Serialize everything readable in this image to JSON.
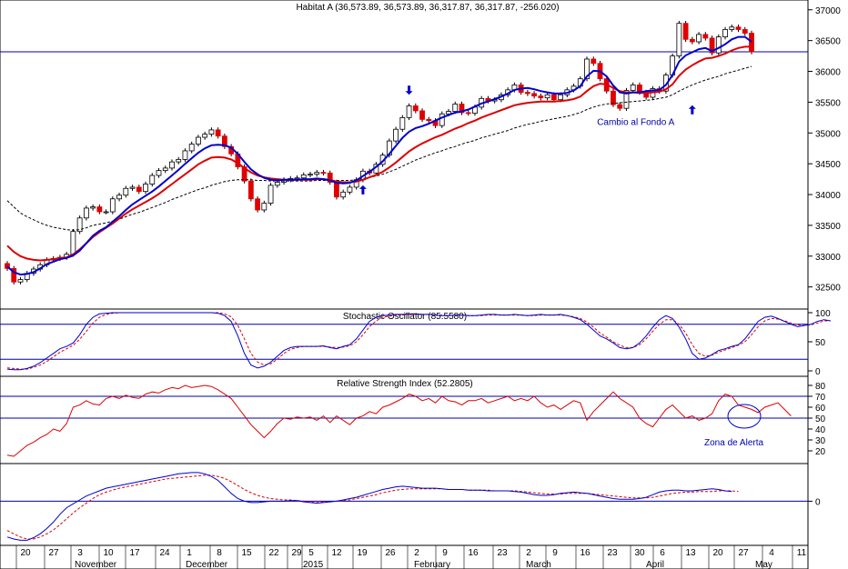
{
  "colors": {
    "bull": "#ffffff",
    "bear": "#e00000",
    "ma_fast": "#0000cc",
    "ma_slow": "#dd0000",
    "ma_long": "#000000",
    "hline": "#0000aa",
    "osc_k": "#0000cc",
    "osc_d": "#dd0000",
    "rsi": "#dd0000",
    "circle": "#0000cc"
  },
  "chart_data": [
    {
      "type": "candlestick",
      "title": "Habitat A (36,573.89, 36,573.89, 36,317.87, 36,317.87, -256.020)",
      "ylim": [
        32200,
        37100
      ],
      "yticks": [
        32500,
        33000,
        33500,
        34000,
        34500,
        35000,
        35500,
        36000,
        36500,
        37000
      ],
      "yticklabels": [
        "32500",
        "33000",
        "33500",
        "34000",
        "34500",
        "35000",
        "35500",
        "36000",
        "36500",
        "37000"
      ],
      "reference_line": 36317.87,
      "close": [
        32800,
        32580,
        32620,
        32720,
        32790,
        32860,
        32940,
        32960,
        32980,
        33030,
        33400,
        33620,
        33780,
        33800,
        33720,
        33720,
        33930,
        33990,
        34100,
        34120,
        34050,
        34170,
        34310,
        34390,
        34430,
        34530,
        34570,
        34710,
        34820,
        34930,
        34980,
        35050,
        34950,
        34780,
        34660,
        34450,
        34220,
        33930,
        33750,
        33860,
        34150,
        34200,
        34240,
        34260,
        34270,
        34320,
        34330,
        34360,
        34350,
        34200,
        33960,
        34040,
        34120,
        34240,
        34380,
        34350,
        34490,
        34640,
        34870,
        35060,
        35250,
        35440,
        35360,
        35220,
        35200,
        35120,
        35310,
        35350,
        35470,
        35330,
        35320,
        35420,
        35560,
        35520,
        35540,
        35620,
        35700,
        35780,
        35660,
        35640,
        35600,
        35570,
        35620,
        35540,
        35620,
        35700,
        35760,
        35880,
        36200,
        36130,
        35880,
        35680,
        35460,
        35400,
        35690,
        35780,
        35660,
        35580,
        35720,
        35680,
        35940,
        36250,
        36780,
        36520,
        36480,
        36600,
        36540,
        36300,
        36560,
        36680,
        36720,
        36680,
        36620,
        36318
      ],
      "ma_fast": [
        32830,
        32740,
        32700,
        32710,
        32740,
        32800,
        32870,
        32910,
        32950,
        32970,
        33010,
        33090,
        33210,
        33330,
        33410,
        33470,
        33560,
        33650,
        33750,
        33840,
        33910,
        33980,
        34050,
        34130,
        34220,
        34310,
        34400,
        34500,
        34590,
        34680,
        34750,
        34800,
        34810,
        34800,
        34760,
        34660,
        34530,
        34410,
        34330,
        34270,
        34240,
        34230,
        34240,
        34240,
        34240,
        34250,
        34250,
        34260,
        34250,
        34230,
        34190,
        34180,
        34190,
        34230,
        34300,
        34370,
        34450,
        34540,
        34660,
        34790,
        34920,
        35020,
        35080,
        35110,
        35150,
        35200,
        35250,
        35290,
        35330,
        35350,
        35380,
        35430,
        35480,
        35510,
        35550,
        35590,
        35640,
        35700,
        35720,
        35730,
        35710,
        35680,
        35660,
        35640,
        35640,
        35650,
        35690,
        35760,
        35920,
        36010,
        36000,
        35920,
        35770,
        35660,
        35640,
        35660,
        35660,
        35680,
        35690,
        35700,
        35780,
        35940,
        36160,
        36260,
        36310,
        36360,
        36380,
        36330,
        36380,
        36440,
        36520,
        36560,
        36560,
        36480
      ],
      "ma_slow": [
        33170,
        33070,
        33000,
        32960,
        32940,
        32930,
        32940,
        32950,
        32970,
        32980,
        33030,
        33110,
        33210,
        33310,
        33390,
        33460,
        33530,
        33610,
        33690,
        33760,
        33820,
        33880,
        33940,
        34010,
        34090,
        34170,
        34250,
        34330,
        34410,
        34490,
        34550,
        34600,
        34610,
        34600,
        34570,
        34510,
        34430,
        34360,
        34310,
        34280,
        34260,
        34250,
        34240,
        34240,
        34240,
        34240,
        34240,
        34250,
        34250,
        34240,
        34210,
        34200,
        34200,
        34210,
        34240,
        34280,
        34320,
        34370,
        34440,
        34520,
        34610,
        34700,
        34770,
        34830,
        34880,
        34930,
        34970,
        35020,
        35070,
        35110,
        35160,
        35200,
        35250,
        35290,
        35330,
        35370,
        35410,
        35450,
        35470,
        35490,
        35500,
        35510,
        35510,
        35510,
        35520,
        35530,
        35550,
        35590,
        35680,
        35760,
        35800,
        35790,
        35730,
        35680,
        35660,
        35660,
        35650,
        35650,
        35660,
        35670,
        35710,
        35790,
        35930,
        36030,
        36100,
        36160,
        36210,
        36220,
        36250,
        36290,
        36340,
        36380,
        36400,
        36400
      ],
      "ma_long": [
        33900,
        33800,
        33700,
        33640,
        33590,
        33540,
        33500,
        33470,
        33450,
        33430,
        33420,
        33430,
        33460,
        33500,
        33520,
        33540,
        33570,
        33600,
        33640,
        33680,
        33710,
        33750,
        33790,
        33830,
        33870,
        33920,
        33960,
        34000,
        34040,
        34080,
        34110,
        34150,
        34180,
        34210,
        34230,
        34240,
        34240,
        34240,
        34230,
        34230,
        34220,
        34220,
        34220,
        34220,
        34220,
        34220,
        34220,
        34230,
        34230,
        34230,
        34230,
        34230,
        34230,
        34240,
        34260,
        34280,
        34300,
        34330,
        34370,
        34410,
        34460,
        34510,
        34560,
        34600,
        34640,
        34680,
        34710,
        34750,
        34780,
        34820,
        34850,
        34880,
        34920,
        34950,
        34980,
        35010,
        35040,
        35080,
        35110,
        35140,
        35160,
        35190,
        35210,
        35230,
        35250,
        35270,
        35300,
        35330,
        35380,
        35420,
        35450,
        35470,
        35480,
        35490,
        35500,
        35510,
        35520,
        35530,
        35540,
        35560,
        35580,
        35620,
        35680,
        35730,
        35780,
        35820,
        35860,
        35890,
        35920,
        35960,
        35990,
        36020,
        36050,
        36080
      ],
      "annotations": [
        {
          "text": "Cambio al Fondo A",
          "x": 93,
          "y": 35130
        }
      ],
      "arrows": [
        {
          "dir": "down",
          "x": 61,
          "y": 35620
        },
        {
          "dir": "up",
          "x": 54,
          "y": 34150
        },
        {
          "dir": "up",
          "x": 104,
          "y": 35450
        }
      ]
    },
    {
      "type": "line",
      "title": "Stochastic Oscillator (85.5580)",
      "ylim": [
        0,
        100
      ],
      "yticks": [
        0,
        50,
        100
      ],
      "yticklabels": [
        "0",
        "50",
        "100"
      ],
      "hlines": [
        20,
        80
      ],
      "k": [
        3,
        2,
        2,
        4,
        8,
        14,
        22,
        30,
        38,
        42,
        48,
        62,
        80,
        92,
        98,
        99,
        100,
        100,
        100,
        100,
        100,
        100,
        100,
        100,
        100,
        100,
        100,
        100,
        100,
        100,
        100,
        100,
        99,
        95,
        85,
        60,
        30,
        10,
        5,
        8,
        15,
        25,
        35,
        40,
        42,
        42,
        42,
        42,
        43,
        40,
        38,
        42,
        45,
        55,
        70,
        85,
        92,
        95,
        96,
        97,
        97,
        98,
        98,
        97,
        97,
        96,
        95,
        95,
        96,
        96,
        95,
        95,
        96,
        97,
        97,
        96,
        96,
        97,
        96,
        95,
        96,
        97,
        96,
        96,
        97,
        95,
        92,
        88,
        80,
        70,
        60,
        55,
        48,
        40,
        38,
        40,
        48,
        60,
        75,
        88,
        95,
        90,
        75,
        55,
        30,
        20,
        22,
        28,
        35,
        38,
        42,
        45,
        55,
        70,
        85,
        92,
        94,
        90,
        85,
        80,
        76,
        78,
        80,
        85,
        88,
        86
      ],
      "d": [
        5,
        4,
        3,
        3,
        6,
        10,
        16,
        24,
        32,
        38,
        44,
        54,
        68,
        82,
        92,
        97,
        99,
        100,
        100,
        100,
        100,
        100,
        100,
        100,
        100,
        100,
        100,
        100,
        100,
        100,
        100,
        100,
        100,
        98,
        93,
        78,
        55,
        30,
        15,
        10,
        12,
        20,
        30,
        37,
        40,
        42,
        42,
        42,
        42,
        41,
        40,
        41,
        43,
        50,
        62,
        76,
        86,
        92,
        94,
        96,
        96,
        97,
        97,
        97,
        97,
        96,
        96,
        95,
        96,
        96,
        95,
        95,
        95,
        96,
        96,
        96,
        96,
        96,
        96,
        95,
        95,
        96,
        96,
        96,
        96,
        95,
        93,
        90,
        84,
        75,
        65,
        58,
        50,
        44,
        40,
        40,
        45,
        55,
        68,
        80,
        88,
        88,
        80,
        65,
        45,
        30,
        25,
        27,
        32,
        36,
        40,
        44,
        50,
        62,
        76,
        86,
        90,
        89,
        86,
        82,
        79,
        78,
        79,
        82,
        86,
        86
      ]
    },
    {
      "type": "line",
      "title": "Relative Strength Index (52.2805)",
      "ylim": [
        10,
        85
      ],
      "yticks": [
        20,
        30,
        40,
        50,
        60,
        70,
        80
      ],
      "yticklabels": [
        "20",
        "30",
        "40",
        "50",
        "60",
        "70",
        "80"
      ],
      "hlines": [
        50,
        70
      ],
      "values": [
        16,
        15,
        20,
        25,
        28,
        32,
        35,
        40,
        38,
        45,
        60,
        62,
        66,
        63,
        62,
        68,
        70,
        68,
        71,
        69,
        68,
        72,
        74,
        73,
        76,
        78,
        77,
        80,
        78,
        79,
        80,
        79,
        76,
        72,
        68,
        60,
        52,
        44,
        38,
        32,
        38,
        45,
        50,
        49,
        51,
        50,
        51,
        48,
        52,
        46,
        52,
        48,
        44,
        50,
        52,
        56,
        54,
        60,
        62,
        65,
        68,
        72,
        70,
        66,
        68,
        64,
        70,
        66,
        65,
        62,
        66,
        66,
        68,
        64,
        66,
        68,
        70,
        66,
        68,
        66,
        70,
        64,
        60,
        62,
        58,
        62,
        66,
        64,
        48,
        56,
        62,
        68,
        74,
        68,
        64,
        60,
        50,
        45,
        42,
        50,
        58,
        62,
        56,
        50,
        52,
        48,
        50,
        54,
        66,
        72,
        70,
        62,
        60,
        58,
        55,
        60,
        62,
        64,
        58,
        52
      ]
    },
    {
      "type": "line",
      "title": "",
      "ylim": [
        -65,
        55
      ],
      "yticks": [
        0
      ],
      "yticklabels": [
        "0"
      ],
      "hlines": [
        0
      ],
      "series": [
        {
          "values": [
            -55,
            -58,
            -60,
            -60,
            -56,
            -50,
            -42,
            -32,
            -20,
            -10,
            -4,
            2,
            8,
            12,
            16,
            20,
            22,
            24,
            26,
            28,
            30,
            32,
            34,
            36,
            38,
            40,
            42,
            43,
            44,
            44,
            42,
            38,
            32,
            22,
            12,
            4,
            0,
            -2,
            -2,
            -1,
            0,
            0,
            0,
            1,
            1,
            -1,
            -2,
            -3,
            -2,
            -1,
            0,
            2,
            4,
            6,
            9,
            12,
            15,
            18,
            20,
            22,
            23,
            22,
            21,
            20,
            20,
            20,
            19,
            18,
            18,
            18,
            17,
            17,
            17,
            16,
            16,
            16,
            16,
            15,
            14,
            12,
            10,
            9,
            9,
            10,
            12,
            13,
            14,
            13,
            12,
            10,
            8,
            6,
            4,
            3,
            3,
            3,
            4,
            6,
            10,
            14,
            16,
            17,
            17,
            16,
            16,
            17,
            18,
            19,
            18,
            16,
            15
          ],
          "color_key": "osc_k"
        },
        {
          "values": [
            -45,
            -50,
            -55,
            -58,
            -58,
            -55,
            -50,
            -44,
            -36,
            -27,
            -18,
            -10,
            -3,
            4,
            10,
            14,
            17,
            20,
            22,
            24,
            26,
            28,
            30,
            32,
            34,
            35,
            36,
            37,
            38,
            39,
            40,
            40,
            38,
            35,
            30,
            24,
            18,
            13,
            9,
            6,
            4,
            3,
            2,
            2,
            1,
            0,
            -1,
            -1,
            -1,
            -1,
            0,
            1,
            2,
            4,
            6,
            8,
            10,
            13,
            15,
            17,
            18,
            19,
            19,
            19,
            19,
            19,
            19,
            18,
            18,
            18,
            17,
            17,
            17,
            17,
            16,
            16,
            16,
            16,
            15,
            14,
            13,
            12,
            11,
            11,
            11,
            12,
            12,
            12,
            12,
            11,
            10,
            9,
            8,
            7,
            6,
            5,
            5,
            5,
            6,
            8,
            10,
            12,
            13,
            14,
            14,
            15,
            15,
            15,
            16,
            16,
            16,
            15
          ],
          "color_key": "osc_d"
        }
      ]
    },
    {
      "type": "axis",
      "day_labels": [
        "20",
        "27",
        "3",
        "10",
        "17",
        "24",
        "1",
        "8",
        "15",
        "22",
        "29",
        "5",
        "12",
        "19",
        "26",
        "2",
        "9",
        "16",
        "23",
        "2",
        "9",
        "16",
        "23",
        "30",
        "6",
        "13",
        "20",
        "27",
        "4",
        "11"
      ],
      "month_labels": [
        "November",
        "December",
        "2015",
        "February",
        "March",
        "April",
        "May"
      ],
      "alert_label": "Zona de Alerta"
    }
  ]
}
